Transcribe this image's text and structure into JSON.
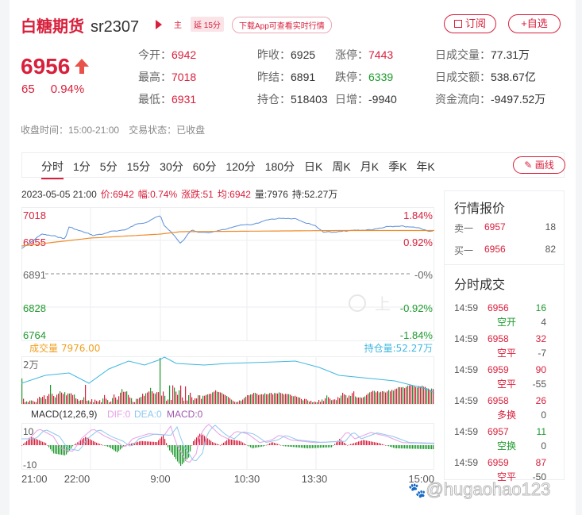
{
  "header": {
    "name": "白糖期货",
    "code": "sr2307",
    "tag_main": "主",
    "tag_delay": "延 15分",
    "download_pill": "下载App可查看实时行情",
    "subscribe_label": "订阅",
    "add_watch_label": "+自选"
  },
  "quote": {
    "price": "6956",
    "change": "65",
    "change_pct": "0.94%",
    "fields": [
      {
        "k": "今开：",
        "v": "6942",
        "color": "red"
      },
      {
        "k": "昨收：",
        "v": "6925",
        "color": "normal"
      },
      {
        "k": "涨停：",
        "v": "7443",
        "color": "red"
      },
      {
        "k": "日成交量：",
        "v": "77.31万",
        "color": "normal"
      },
      {
        "k": "最高：",
        "v": "7018",
        "color": "red"
      },
      {
        "k": "昨结：",
        "v": "6891",
        "color": "normal"
      },
      {
        "k": "跌停：",
        "v": "6339",
        "color": "green"
      },
      {
        "k": "日成交额：",
        "v": "538.67亿",
        "color": "normal"
      },
      {
        "k": "最低：",
        "v": "6931",
        "color": "red"
      },
      {
        "k": "持仓：",
        "v": "518403",
        "color": "normal"
      },
      {
        "k": "日增：",
        "v": "-9940",
        "color": "normal"
      },
      {
        "k": "资金流向：",
        "v": "-9497.52万",
        "color": "normal"
      }
    ]
  },
  "status": {
    "close_time": "收盘时间：15:00-21:00",
    "trade_state": "交易状态：已收盘"
  },
  "tabs": [
    "分时",
    "1分",
    "5分",
    "15分",
    "30分",
    "60分",
    "120分",
    "180分",
    "日K",
    "周K",
    "月K",
    "季K",
    "年K"
  ],
  "active_tab": "分时",
  "draw_button": "画线",
  "info_line": {
    "datetime": "2023-05-05 21:00",
    "price": "价:6942",
    "amp": "幅:0.74%",
    "chg": "涨跌:51",
    "avg": "均:6942",
    "vol": "量:7976",
    "oi": "持:52.27万"
  },
  "chart_labels": {
    "left_ticks": [
      "7018",
      "6955",
      "6891",
      "6828",
      "6764"
    ],
    "right_ticks": [
      "1.84%",
      "0.92%",
      "-0%",
      "-0.92%",
      "-1.84%"
    ],
    "volume_label": "成交量",
    "volume_value": "7976.00",
    "oi_label": "持仓量:52.27万",
    "volume_axis": "2万",
    "macd_title": "MACD(12,26,9)",
    "dif": "DIF:0",
    "dea": "DEA:0",
    "macd": "MACD:0",
    "macd_top": "10",
    "macd_bottom": "-10",
    "x_ticks": [
      "21:00",
      "22:00",
      "9:00",
      "10:30",
      "13:30",
      "15:00"
    ],
    "watermark_center": "上"
  },
  "side": {
    "quote_title": "行情报价",
    "ask": {
      "label": "卖一",
      "price": "6957",
      "qty": "18"
    },
    "bid": {
      "label": "买一",
      "price": "6956",
      "qty": "82"
    },
    "trades_title": "分时成交",
    "trades": [
      {
        "time": "14:59",
        "price": "6956",
        "qty": "16",
        "qty_color": "green",
        "type": "空开",
        "type_color": "green",
        "oi": "4"
      },
      {
        "time": "14:59",
        "price": "6958",
        "qty": "32",
        "qty_color": "red",
        "type": "空平",
        "type_color": "red",
        "oi": "-7"
      },
      {
        "time": "14:59",
        "price": "6959",
        "qty": "90",
        "qty_color": "red",
        "type": "空平",
        "type_color": "red",
        "oi": "-55"
      },
      {
        "time": "14:59",
        "price": "6958",
        "qty": "26",
        "qty_color": "red",
        "type": "多换",
        "type_color": "red",
        "oi": "0"
      },
      {
        "time": "14:59",
        "price": "6957",
        "qty": "11",
        "qty_color": "green",
        "type": "空换",
        "type_color": "green",
        "oi": "0"
      },
      {
        "time": "14:59",
        "price": "6959",
        "qty": "87",
        "qty_color": "red",
        "type": "空平",
        "type_color": "red",
        "oi": "-50"
      }
    ]
  },
  "watermark": "@hugaohao123",
  "colors": {
    "red": "#d8203c",
    "green": "#1e9a2e",
    "price_line": "#5b8fd9",
    "avg_line": "#f08c2a",
    "oi_line": "#3fb7e0",
    "volume_label": "#f0a020"
  }
}
